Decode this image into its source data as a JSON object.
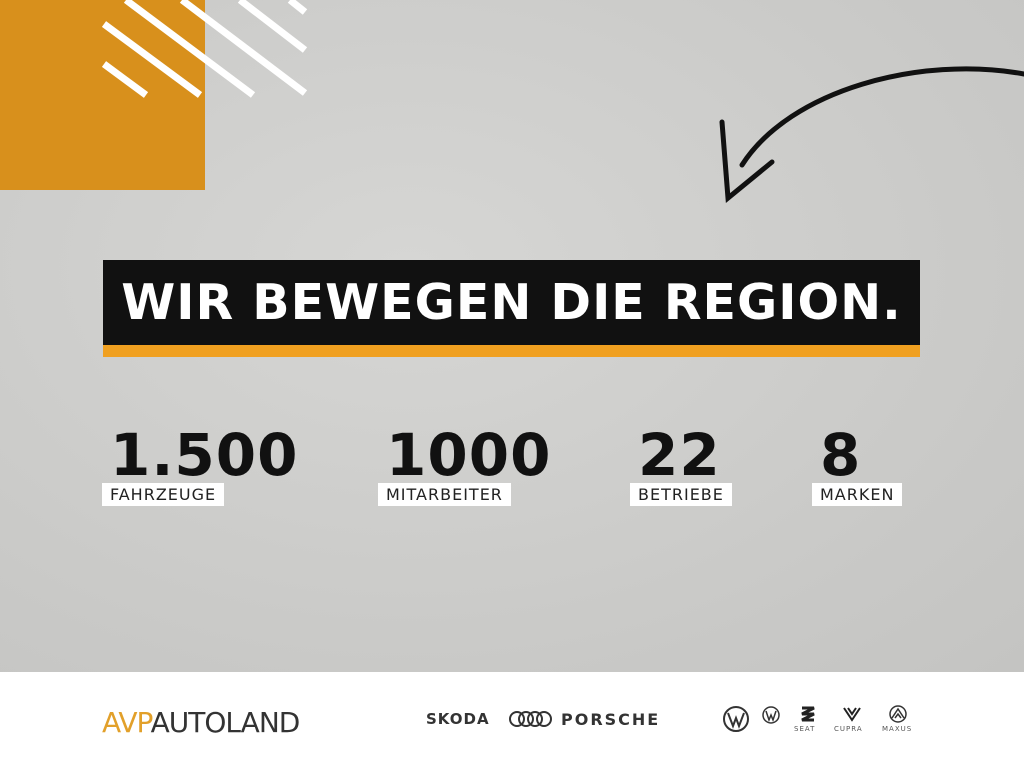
{
  "colors": {
    "accent": "#d8901c",
    "banner_bar": "#f0a020",
    "banner_bg": "#111111"
  },
  "headline": "WIR BEWEGEN DIE REGION.",
  "stats": [
    {
      "value": "1.500",
      "label": "FAHRZEUGE"
    },
    {
      "value": "1000",
      "label": "MITARBEITER"
    },
    {
      "value": "22",
      "label": "BETRIEBE"
    },
    {
      "value": "8",
      "label": "MARKEN"
    }
  ],
  "footer": {
    "logo_prefix": "AVP",
    "logo_name": "AUTOLAND",
    "brands": [
      "SKODA",
      "Audi",
      "PORSCHE",
      "Volkswagen",
      "Volkswagen Nutzfahrzeuge",
      "SEAT",
      "CUPRA",
      "MAXUS"
    ],
    "brand_text": {
      "skoda": "SKODA",
      "porsche": "PORSCHE",
      "seat": "SEAT",
      "cupra": "CUPRA",
      "maxus": "MAXUS"
    }
  }
}
